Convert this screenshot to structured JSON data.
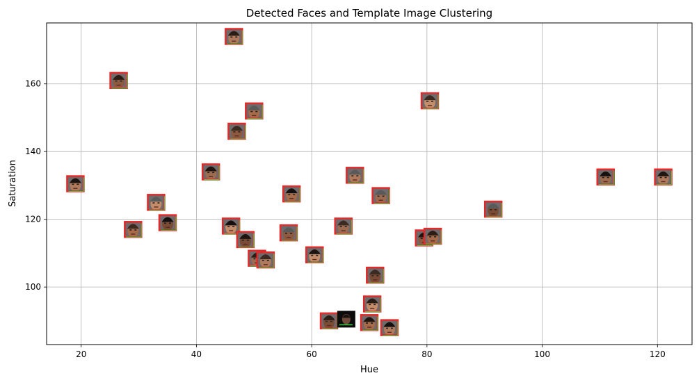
{
  "chart_data": {
    "type": "scatter",
    "title": "Detected Faces and Template Image Clustering",
    "xlabel": "Hue",
    "ylabel": "Saturation",
    "xlim": [
      14,
      126
    ],
    "ylim": [
      83,
      178
    ],
    "x_ticks": [
      20,
      40,
      60,
      80,
      100,
      120
    ],
    "y_ticks": [
      100,
      120,
      140,
      160
    ],
    "grid": true,
    "marker": "face-thumbnail",
    "points": [
      {
        "x": 19,
        "y": 130.5
      },
      {
        "x": 26.5,
        "y": 161
      },
      {
        "x": 29,
        "y": 117
      },
      {
        "x": 33,
        "y": 125
      },
      {
        "x": 35,
        "y": 119
      },
      {
        "x": 42.5,
        "y": 134
      },
      {
        "x": 46.5,
        "y": 174
      },
      {
        "x": 47,
        "y": 146
      },
      {
        "x": 50,
        "y": 152
      },
      {
        "x": 46,
        "y": 118
      },
      {
        "x": 48.5,
        "y": 114
      },
      {
        "x": 50.5,
        "y": 108.5
      },
      {
        "x": 52,
        "y": 108
      },
      {
        "x": 56,
        "y": 116
      },
      {
        "x": 56.5,
        "y": 127.5
      },
      {
        "x": 60.5,
        "y": 109.5
      },
      {
        "x": 63,
        "y": 90
      },
      {
        "x": 65.5,
        "y": 118
      },
      {
        "x": 67.5,
        "y": 133
      },
      {
        "x": 66,
        "y": 90.5,
        "template": true
      },
      {
        "x": 70,
        "y": 89.5
      },
      {
        "x": 70.5,
        "y": 95
      },
      {
        "x": 71,
        "y": 103.5
      },
      {
        "x": 72,
        "y": 127
      },
      {
        "x": 73.5,
        "y": 88
      },
      {
        "x": 79.5,
        "y": 114.5
      },
      {
        "x": 81,
        "y": 115
      },
      {
        "x": 80.5,
        "y": 155
      },
      {
        "x": 91.5,
        "y": 123
      },
      {
        "x": 111,
        "y": 132.5
      },
      {
        "x": 121,
        "y": 132.5
      }
    ]
  }
}
